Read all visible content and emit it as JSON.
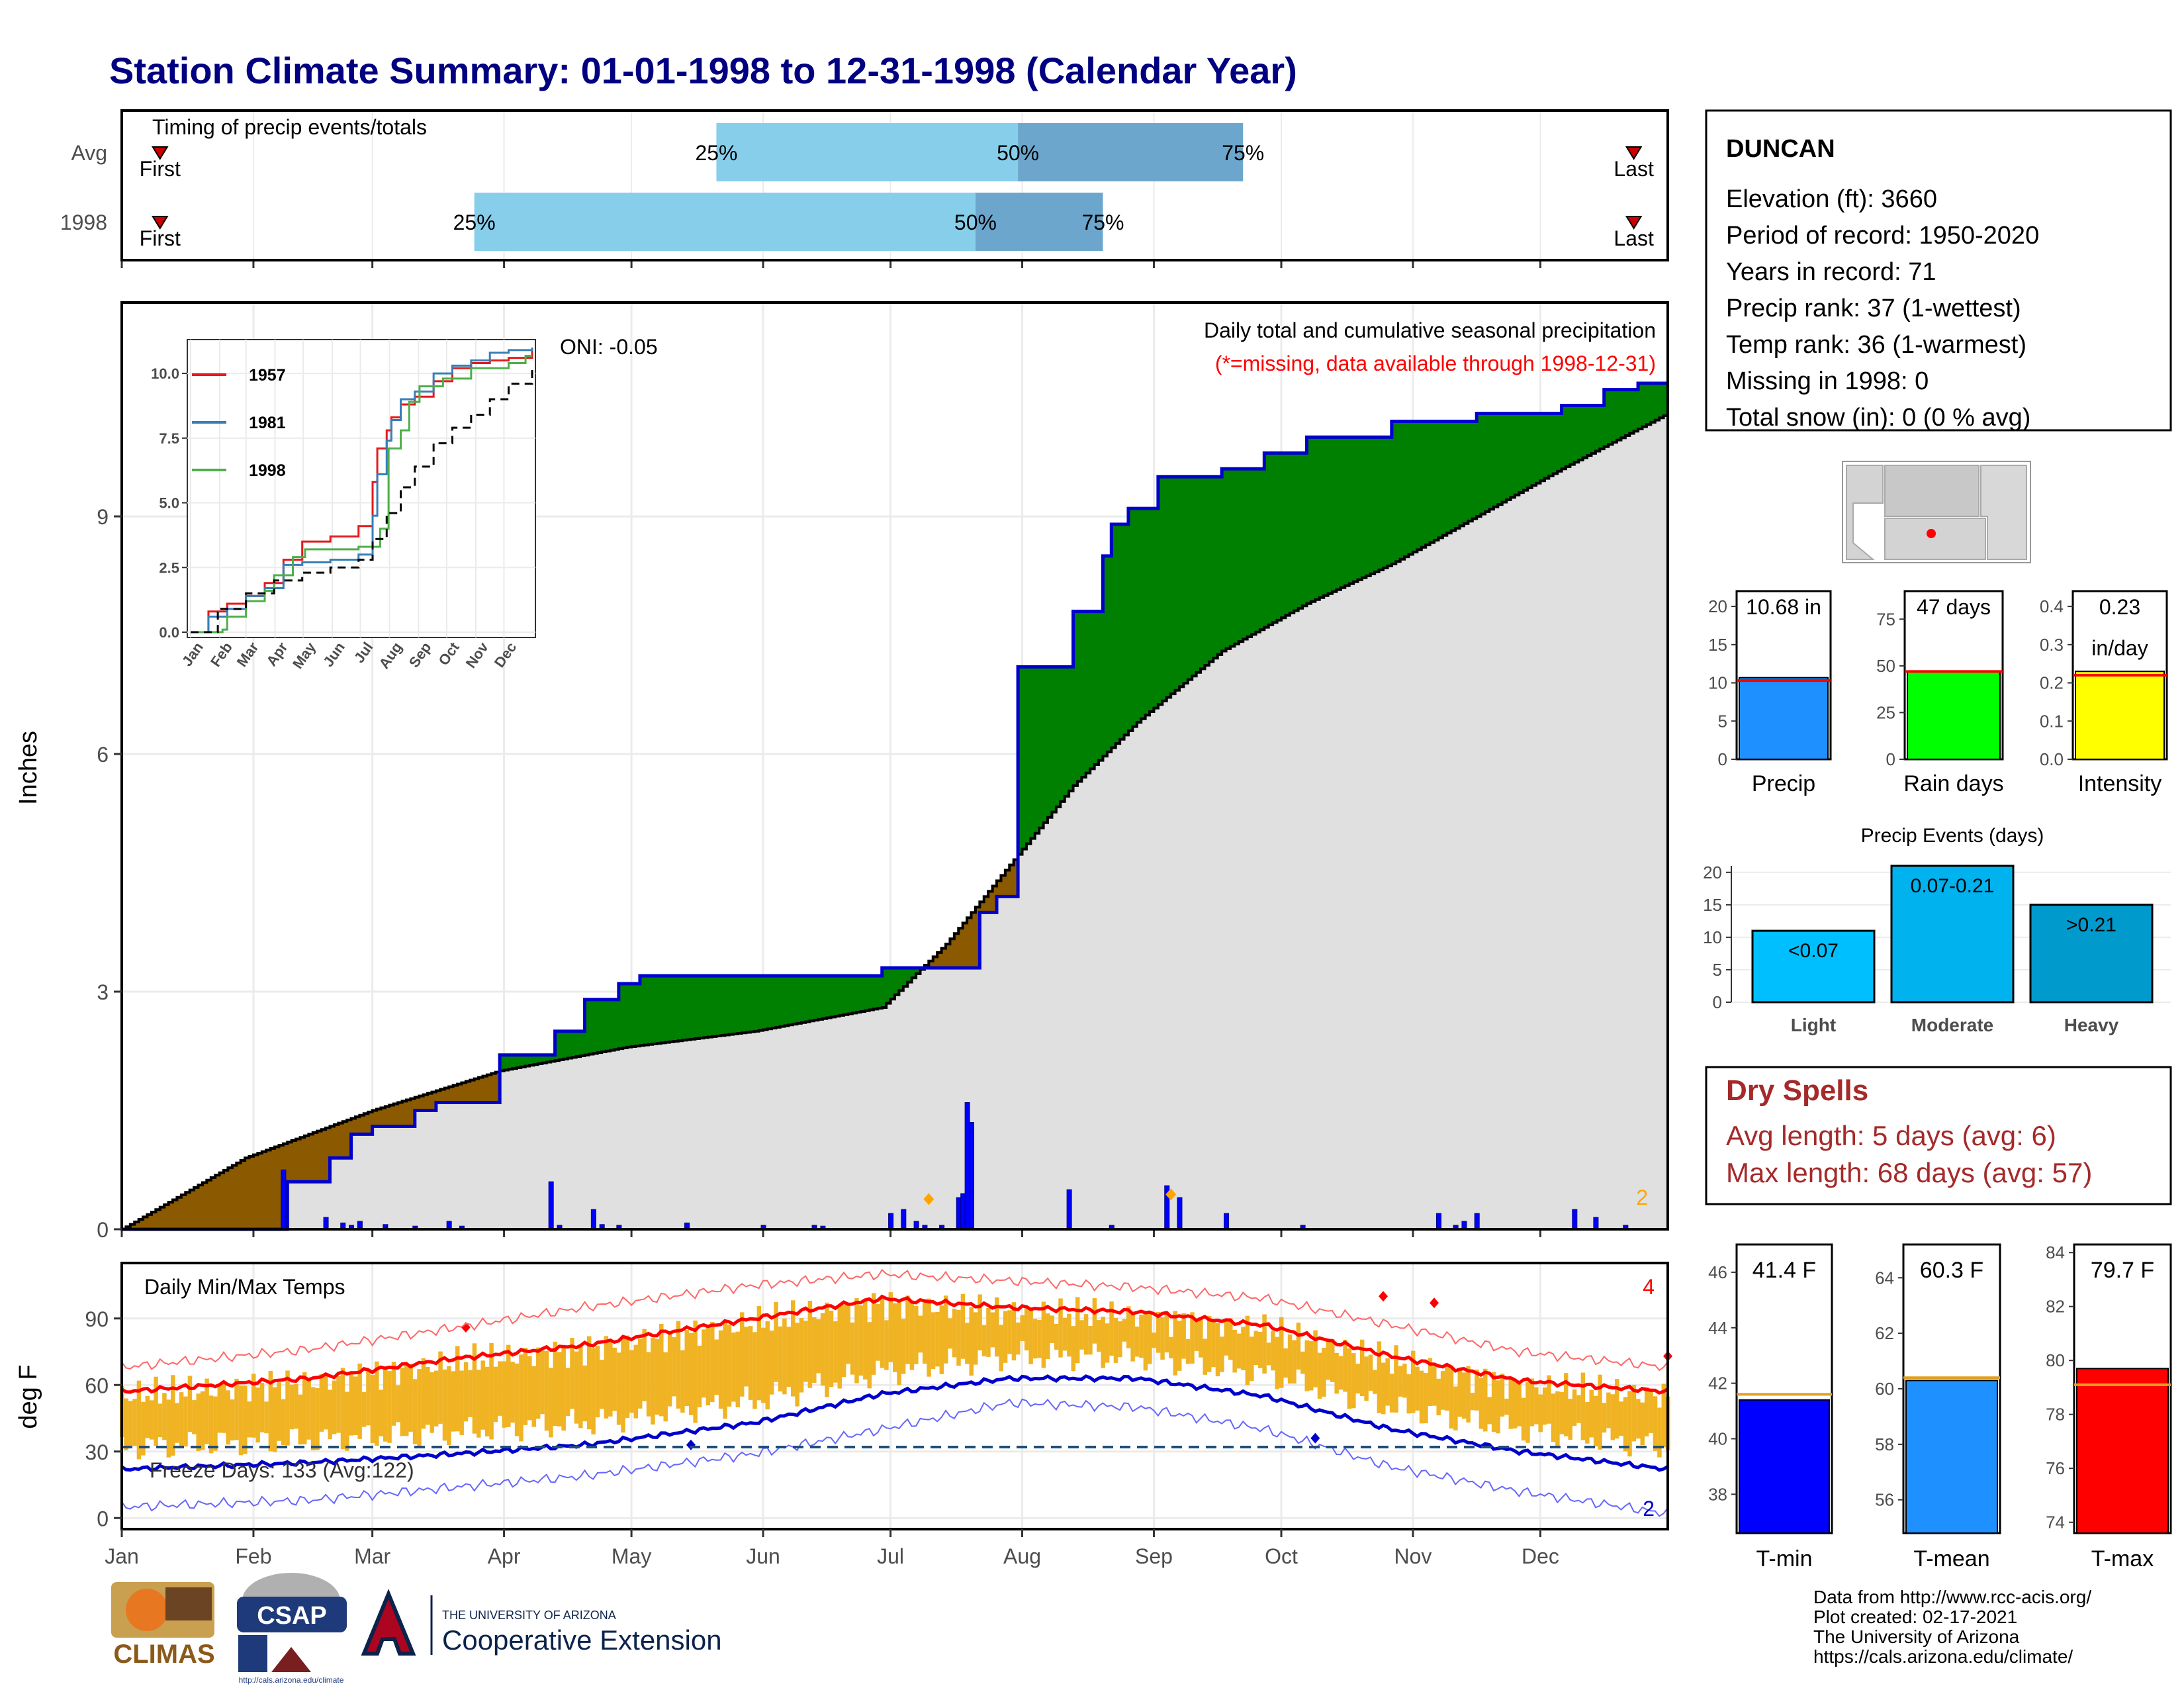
{
  "title": "Station Climate Summary: 01-01-1998 to 12-31-1998 (Calendar Year)",
  "colors": {
    "title": "#000080",
    "q_light": "#87ceeb",
    "q_dark": "#6ca6cd",
    "excess": "#008000",
    "deficit": "#8b5a00",
    "normal_fill": "#e0e0e0",
    "cum_line": "#0000cd",
    "daily_bar": "#0000ff",
    "temp_bar": "#f0b323",
    "tmax_line": "#ff0000",
    "tmin_line": "#0000cd",
    "dry_spell": "#a52a2a"
  },
  "timing": {
    "label": "Timing of precip events/totals",
    "first_label": "First",
    "last_label": "Last",
    "rows": [
      {
        "name": "Avg",
        "first_doy": 10,
        "q25_doy": 141,
        "q50_doy": 212,
        "q75_doy": 265,
        "last_doy": 357,
        "q25_label": "25%",
        "q50_label": "50%",
        "q75_label": "75%"
      },
      {
        "name": "1998",
        "first_doy": 10,
        "q25_doy": 84,
        "q50_doy": 202,
        "q75_doy": 232,
        "last_doy": 357,
        "q25_label": "25%",
        "q50_label": "50%",
        "q75_label": "75%"
      }
    ]
  },
  "station": {
    "name": "DUNCAN",
    "lines": [
      "Elevation (ft): 3660",
      "Period of record: 1950-2020",
      "Years in record: 71",
      "Precip rank: 37 (1-wettest)",
      "Temp rank: 36 (1-warmest)",
      "Missing in 1998: 0",
      "Total snow (in): 0 (0 % avg)"
    ]
  },
  "precip_panel": {
    "ylabel": "Inches",
    "oni": "ONI: -0.05",
    "note": "Daily total and cumulative seasonal precipitation",
    "missing_note": "(*=missing, data available through 1998-12-31)",
    "corner_count": "2",
    "yticks": [
      "0",
      "3",
      "6",
      "9"
    ]
  },
  "inset": {
    "legend": [
      "1957",
      "1981",
      "1998"
    ],
    "legend_colors": [
      "#e41a1c",
      "#377eb8",
      "#4daf4a"
    ],
    "yticks": [
      "0.0",
      "2.5",
      "5.0",
      "7.5",
      "10.0"
    ],
    "months": [
      "Jan",
      "Feb",
      "Mar",
      "Apr",
      "May",
      "Jun",
      "Jul",
      "Aug",
      "Sep",
      "Oct",
      "Nov",
      "Dec"
    ]
  },
  "temp_panel": {
    "ylabel": "deg F",
    "label": "Daily Min/Max Temps",
    "freeze": "Freeze Days: 133 (Avg:122)",
    "max_records": "4",
    "min_records": "2",
    "yticks": [
      "0",
      "30",
      "60",
      "90"
    ]
  },
  "months": [
    "Jan",
    "Feb",
    "Mar",
    "Apr",
    "May",
    "Jun",
    "Jul",
    "Aug",
    "Sep",
    "Oct",
    "Nov",
    "Dec"
  ],
  "mini_bars": [
    {
      "caption": "Precip",
      "value_label": "10.68 in",
      "yticks": [
        "0",
        "5",
        "10",
        "15",
        "20"
      ],
      "color": "#1e90ff"
    },
    {
      "caption": "Rain days",
      "value_label": "47 days",
      "yticks": [
        "0",
        "25",
        "50",
        "75"
      ],
      "color": "#00ff00"
    },
    {
      "caption": "Intensity",
      "value_label": "0.23",
      "value_label2": "in/day",
      "yticks": [
        "0.0",
        "0.1",
        "0.2",
        "0.3",
        "0.4"
      ],
      "color": "#ffff00"
    }
  ],
  "events": {
    "title": "Precip Events (days)",
    "yticks": [
      "0",
      "5",
      "10",
      "15",
      "20"
    ],
    "bars": [
      {
        "name": "Light",
        "label": "<0.07",
        "color": "#00bfff"
      },
      {
        "name": "Moderate",
        "label": "0.07-0.21",
        "color": "#00b2ee"
      },
      {
        "name": "Heavy",
        "label": ">0.21",
        "color": "#009acd"
      }
    ]
  },
  "dry_spells": {
    "title": "Dry Spells",
    "avg": "Avg length: 5 days (avg: 6)",
    "max": "Max length: 68 days (avg: 57)"
  },
  "temp_bars": [
    {
      "caption": "T-min",
      "value_label": "41.4 F",
      "yticks": [
        "38",
        "40",
        "42",
        "44",
        "46"
      ],
      "color": "#0000ff"
    },
    {
      "caption": "T-mean",
      "value_label": "60.3 F",
      "yticks": [
        "56",
        "58",
        "60",
        "62",
        "64"
      ],
      "color": "#1e90ff"
    },
    {
      "caption": "T-max",
      "value_label": "79.7 F",
      "yticks": [
        "74",
        "76",
        "78",
        "80",
        "82",
        "84"
      ],
      "color": "#ff0000"
    }
  ],
  "footer": {
    "lines": [
      "Data from http://www.rcc-acis.org/",
      "Plot created: 02-17-2021",
      "The University of Arizona",
      "https://cals.arizona.edu/climate/"
    ],
    "climas": "CLIMAS",
    "csap": "CSAP",
    "csap_url": "http://cals.arizona.edu/climate",
    "ua_small": "THE UNIVERSITY OF ARIZONA",
    "ua_big": "Cooperative Extension"
  },
  "chart_data": [
    {
      "type": "line",
      "title": "Daily total and cumulative seasonal precipitation",
      "ylabel": "Inches",
      "ylim": [
        0,
        11.7
      ],
      "x_unit": "day of year 1998",
      "series": [
        {
          "name": "1998 cumulative",
          "x": [
            1,
            35,
            40,
            50,
            55,
            60,
            65,
            70,
            75,
            80,
            90,
            103,
            110,
            118,
            123,
            132,
            150,
            180,
            203,
            207,
            210,
            212,
            225,
            232,
            234,
            238,
            245,
            250,
            260,
            270,
            280,
            300,
            320,
            340,
            350,
            358,
            365
          ],
          "y": [
            0,
            0,
            0.6,
            0.9,
            1.2,
            1.3,
            1.3,
            1.5,
            1.6,
            1.6,
            2.2,
            2.5,
            2.9,
            3.1,
            3.2,
            3.2,
            3.2,
            3.3,
            4.0,
            4.2,
            4.2,
            7.1,
            7.8,
            8.5,
            8.9,
            9.1,
            9.5,
            9.5,
            9.6,
            9.8,
            10.0,
            10.2,
            10.3,
            10.4,
            10.6,
            10.68,
            10.68
          ]
        },
        {
          "name": "normal",
          "x": [
            1,
            30,
            60,
            90,
            120,
            150,
            180,
            195,
            210,
            225,
            240,
            260,
            280,
            300,
            320,
            340,
            365
          ],
          "y": [
            0,
            0.9,
            1.5,
            2.0,
            2.3,
            2.5,
            2.8,
            3.6,
            4.6,
            5.6,
            6.4,
            7.3,
            7.9,
            8.4,
            9.0,
            9.6,
            10.3
          ]
        }
      ],
      "daily_precip": {
        "x": [
          39,
          49,
          53,
          55,
          57,
          63,
          70,
          78,
          81,
          102,
          104,
          112,
          114,
          118,
          134,
          152,
          164,
          166,
          182,
          185,
          188,
          190,
          194,
          198,
          199,
          200,
          201,
          224,
          234,
          247,
          250,
          261,
          279,
          311,
          315,
          317,
          320,
          343,
          348,
          355
        ],
        "y": [
          0.75,
          0.15,
          0.08,
          0.05,
          0.1,
          0.06,
          0.04,
          0.1,
          0.04,
          0.6,
          0.05,
          0.25,
          0.06,
          0.05,
          0.08,
          0.05,
          0.05,
          0.04,
          0.2,
          0.25,
          0.1,
          0.05,
          0.05,
          0.4,
          0.45,
          1.6,
          1.35,
          0.5,
          0.05,
          0.55,
          0.4,
          0.2,
          0.05,
          0.2,
          0.05,
          0.1,
          0.2,
          0.25,
          0.15,
          0.05
        ]
      }
    },
    {
      "type": "line",
      "title": "Daily Min/Max Temps",
      "ylabel": "deg F",
      "ylim": [
        -5,
        115
      ],
      "series": [
        {
          "name": "avg max",
          "x": [
            1,
            45,
            80,
            110,
            150,
            180,
            210,
            240,
            270,
            300,
            330,
            365
          ],
          "y": [
            57,
            63,
            72,
            78,
            90,
            99,
            95,
            93,
            87,
            73,
            62,
            57
          ]
        },
        {
          "name": "avg min",
          "x": [
            1,
            45,
            80,
            110,
            150,
            180,
            210,
            240,
            270,
            300,
            330,
            365
          ],
          "y": [
            22,
            25,
            29,
            33,
            43,
            56,
            63,
            63,
            55,
            40,
            30,
            22
          ]
        },
        {
          "name": "record max",
          "x": [
            1,
            45,
            80,
            110,
            150,
            180,
            210,
            240,
            270,
            300,
            330,
            365
          ],
          "y": [
            68,
            76,
            86,
            95,
            105,
            110,
            107,
            104,
            99,
            87,
            75,
            68
          ]
        },
        {
          "name": "record min",
          "x": [
            1,
            45,
            80,
            110,
            150,
            180,
            210,
            240,
            270,
            300,
            330,
            365
          ],
          "y": [
            5,
            8,
            14,
            19,
            29,
            40,
            52,
            50,
            40,
            23,
            12,
            2
          ]
        }
      ],
      "freeze_line": 32
    },
    {
      "type": "line",
      "legend": [
        "1957",
        "1981",
        "1998"
      ],
      "ylim": [
        0,
        11
      ],
      "series": [
        {
          "name": "1957",
          "x": [
            1,
            20,
            40,
            60,
            80,
            100,
            120,
            150,
            180,
            195,
            200,
            210,
            215,
            225,
            240,
            260,
            280,
            300,
            320,
            340,
            365
          ],
          "y": [
            0,
            0.8,
            1.1,
            1.4,
            1.9,
            2.8,
            3.5,
            3.7,
            4.1,
            5.8,
            7.1,
            7.8,
            8.3,
            8.8,
            9.1,
            9.7,
            10.2,
            10.4,
            10.5,
            10.6,
            10.9
          ]
        },
        {
          "name": "1981",
          "x": [
            1,
            20,
            40,
            60,
            80,
            100,
            120,
            150,
            180,
            195,
            200,
            210,
            215,
            225,
            240,
            260,
            280,
            300,
            320,
            340,
            365
          ],
          "y": [
            0,
            0.6,
            0.9,
            1.4,
            1.7,
            2.6,
            2.7,
            2.8,
            3.0,
            4.5,
            6.1,
            7.4,
            8.2,
            9.0,
            9.3,
            10.0,
            10.3,
            10.5,
            10.8,
            10.9,
            11.0
          ]
        },
        {
          "name": "1998",
          "x": [
            1,
            35,
            40,
            60,
            80,
            90,
            110,
            123,
            150,
            180,
            203,
            212,
            225,
            234,
            245,
            270,
            300,
            340,
            358,
            365
          ],
          "y": [
            0,
            0.1,
            0.6,
            1.2,
            1.6,
            2.2,
            2.9,
            3.2,
            3.2,
            3.3,
            4.0,
            7.1,
            7.8,
            8.9,
            9.5,
            9.8,
            10.2,
            10.4,
            10.68,
            10.68
          ]
        },
        {
          "name": "normal",
          "x": [
            1,
            30,
            60,
            90,
            120,
            150,
            180,
            195,
            210,
            225,
            240,
            260,
            280,
            300,
            320,
            340,
            365
          ],
          "y": [
            0,
            0.9,
            1.5,
            2.0,
            2.3,
            2.5,
            2.8,
            3.6,
            4.6,
            5.6,
            6.4,
            7.3,
            7.9,
            8.4,
            9.0,
            9.6,
            10.3
          ]
        }
      ]
    },
    {
      "type": "bar",
      "categories": [
        "Precip",
        "Rain days",
        "Intensity"
      ],
      "values": [
        10.68,
        47,
        0.23
      ],
      "averages": [
        10.3,
        47,
        0.22
      ]
    },
    {
      "type": "bar",
      "title": "Precip Events (days)",
      "categories": [
        "Light",
        "Moderate",
        "Heavy"
      ],
      "values": [
        11,
        21,
        15
      ],
      "ylim": [
        0,
        21
      ]
    },
    {
      "type": "bar",
      "categories": [
        "T-min",
        "T-mean",
        "T-max"
      ],
      "values": [
        41.4,
        60.3,
        79.7
      ],
      "averages": [
        41.6,
        60.4,
        79.1
      ]
    }
  ]
}
